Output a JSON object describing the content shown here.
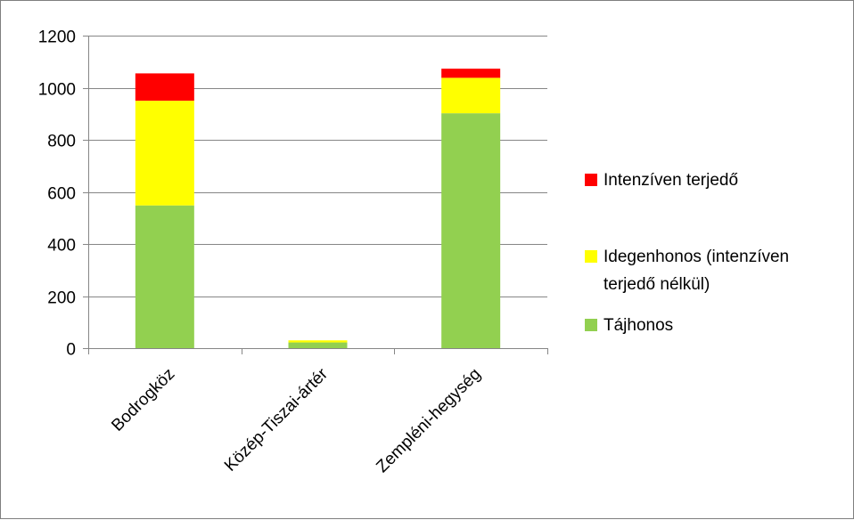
{
  "chart_data": {
    "type": "bar",
    "stacked": true,
    "categories": [
      "Bodrogköz",
      "Közép-Tiszai-ártér",
      "Zempléni-hegység"
    ],
    "series": [
      {
        "name": "Tájhonos",
        "color": "#92d050",
        "values": [
          548,
          22,
          902
        ]
      },
      {
        "name": "Idegenhonos (intenzíven terjedő nélkül)",
        "color": "#ffff00",
        "values": [
          402,
          8,
          136
        ]
      },
      {
        "name": "Intenzíven terjedő",
        "color": "#ff0000",
        "values": [
          105,
          0,
          35
        ]
      }
    ],
    "ylim": [
      0,
      1200
    ],
    "yticks": [
      0,
      200,
      400,
      600,
      800,
      1000,
      1200
    ],
    "grid": true,
    "legend_position": "right"
  },
  "legend": [
    {
      "label": "Intenzíven terjedő",
      "lines": [
        "Intenzíven terjedő"
      ],
      "color": "#ff0000"
    },
    {
      "label": "Idegenhonos (intenzíven terjedő nélkül)",
      "lines": [
        "Idegenhonos (intenzíven",
        "terjedő nélkül)"
      ],
      "color": "#ffff00"
    },
    {
      "label": "Tájhonos",
      "lines": [
        "Tájhonos"
      ],
      "color": "#92d050"
    }
  ]
}
